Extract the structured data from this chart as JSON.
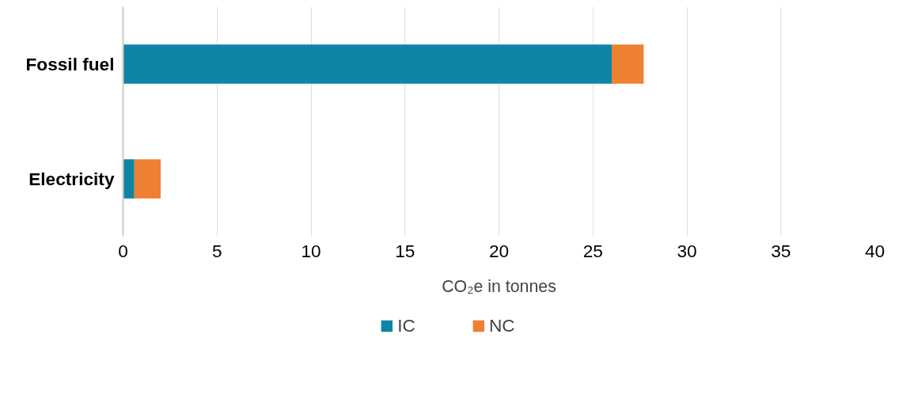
{
  "chart_data": {
    "type": "bar",
    "orientation": "horizontal",
    "stacked": true,
    "xlabel": "CO₂e in tonnes",
    "categories": [
      "Fossil fuel",
      "Electricity"
    ],
    "series": [
      {
        "name": "IC",
        "color": "#1084a4",
        "values": [
          26,
          0.6
        ]
      },
      {
        "name": "NC",
        "color": "#ee8033",
        "values": [
          1.7,
          1.4
        ]
      }
    ],
    "xlim": [
      0,
      40
    ],
    "xticks": [
      0,
      5,
      10,
      15,
      20,
      25,
      30,
      35,
      40
    ],
    "grid": "x",
    "legend": "bottom"
  }
}
